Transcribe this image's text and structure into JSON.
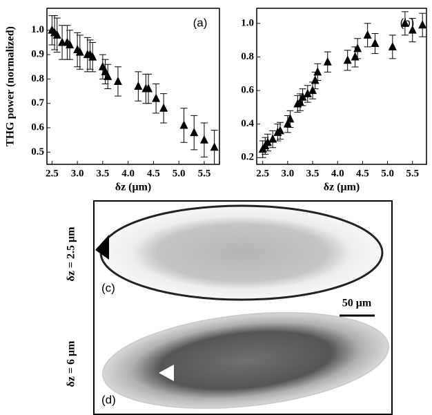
{
  "chart_data": [
    {
      "type": "scatter",
      "panel": "(a)",
      "y_label": "THG power (normalized)",
      "x_label": "δz (μm)",
      "x": [
        2.5,
        2.55,
        2.6,
        2.7,
        2.8,
        2.85,
        3.0,
        3.05,
        3.2,
        3.25,
        3.3,
        3.5,
        3.55,
        3.6,
        3.8,
        4.2,
        4.35,
        4.4,
        4.55,
        4.7,
        5.1,
        5.3,
        5.5,
        5.7
      ],
      "series": [
        {
          "color": "#000000",
          "values": [
            1.0,
            0.99,
            0.98,
            0.95,
            0.95,
            0.94,
            0.92,
            0.91,
            0.9,
            0.9,
            0.89,
            0.85,
            0.83,
            0.81,
            0.79,
            0.77,
            0.76,
            0.76,
            0.72,
            0.68,
            0.61,
            0.58,
            0.55,
            0.52
          ],
          "errors": [
            0.06,
            0.07,
            0.07,
            0.07,
            0.07,
            0.06,
            0.07,
            0.07,
            0.07,
            0.06,
            0.06,
            0.05,
            0.05,
            0.05,
            0.06,
            0.06,
            0.06,
            0.06,
            0.06,
            0.06,
            0.07,
            0.07,
            0.07,
            0.07
          ]
        }
      ],
      "xlim": [
        2.4,
        5.8
      ],
      "ylim": [
        0.45,
        1.09
      ],
      "xticks": [
        2.5,
        {
          "value": 3,
          "label": "3.0"
        },
        3.5,
        {
          "value": 4,
          "label": "4.0"
        },
        4.5,
        {
          "value": 5,
          "label": "5.0"
        },
        5.5
      ],
      "yticks": [
        0.5,
        0.6,
        0.7,
        0.8,
        0.9,
        {
          "value": 1,
          "label": "1.0"
        }
      ]
    },
    {
      "type": "scatter",
      "panel": "(b)",
      "x_label": "δz (μm)",
      "x": [
        2.5,
        2.55,
        2.6,
        2.7,
        2.8,
        2.85,
        3.0,
        3.05,
        3.2,
        3.25,
        3.3,
        3.4,
        3.5,
        3.55,
        3.6,
        3.8,
        4.2,
        4.35,
        4.4,
        4.6,
        4.75,
        5.1,
        5.35,
        5.5,
        5.7
      ],
      "series": [
        {
          "color": "#000000",
          "values": [
            0.25,
            0.27,
            0.29,
            0.31,
            0.35,
            0.36,
            0.4,
            0.43,
            0.52,
            0.53,
            0.56,
            0.58,
            0.6,
            0.66,
            0.71,
            0.77,
            0.78,
            0.8,
            0.85,
            0.93,
            0.88,
            0.86,
            1.0,
            0.96,
            0.99
          ],
          "errors": [
            0.05,
            0.05,
            0.05,
            0.05,
            0.05,
            0.05,
            0.05,
            0.05,
            0.05,
            0.05,
            0.05,
            0.05,
            0.05,
            0.05,
            0.05,
            0.06,
            0.06,
            0.06,
            0.06,
            0.07,
            0.06,
            0.07,
            0.07,
            0.07,
            0.07
          ]
        }
      ],
      "xlim": [
        2.38,
        5.78
      ],
      "ylim": [
        0.16,
        1.09
      ],
      "xticks": [
        2.5,
        {
          "value": 3,
          "label": "3.0"
        },
        3.5,
        {
          "value": 4,
          "label": "4.0"
        },
        4.5,
        {
          "value": 5,
          "label": "5.0"
        },
        5.5
      ],
      "yticks": [
        0.2,
        0.4,
        0.6,
        0.8,
        {
          "value": 1,
          "label": "1.0"
        }
      ]
    }
  ],
  "image_panel": {
    "top_label": "δz = 2.5 μm",
    "bottom_label": "δz = 6 μm",
    "top_panel": "(c)",
    "bottom_panel": "(d)",
    "scale_bar": "50 μm"
  }
}
